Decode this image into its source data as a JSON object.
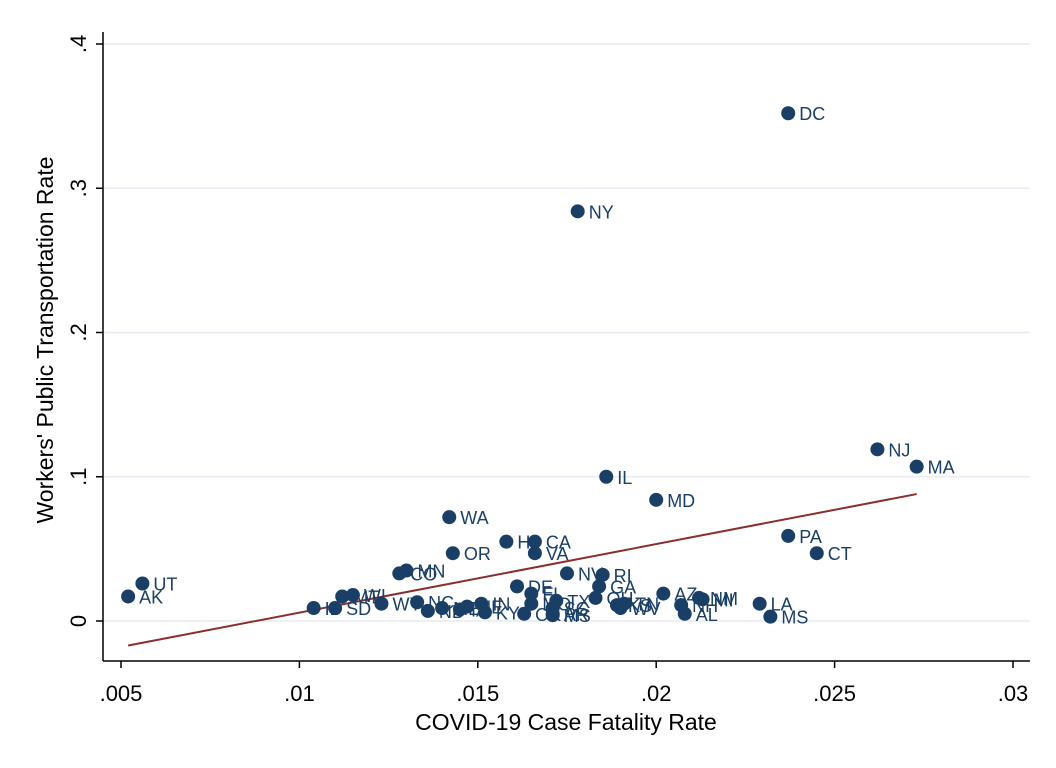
{
  "chart_data": {
    "type": "scatter",
    "xlabel": "COVID-19 Case Fatality Rate",
    "ylabel": "Workers' Public Transportation Rate",
    "xlim": [
      0.005,
      0.03
    ],
    "ylim": [
      0,
      0.4
    ],
    "x_ticks": [
      {
        "value": 0.005,
        "label": ".005"
      },
      {
        "value": 0.01,
        "label": ".01"
      },
      {
        "value": 0.015,
        "label": ".015"
      },
      {
        "value": 0.02,
        "label": ".02"
      },
      {
        "value": 0.025,
        "label": ".025"
      },
      {
        "value": 0.03,
        "label": ".03"
      }
    ],
    "y_ticks": [
      {
        "value": 0,
        "label": "0"
      },
      {
        "value": 0.1,
        "label": ".1"
      },
      {
        "value": 0.2,
        "label": ".2"
      },
      {
        "value": 0.3,
        "label": ".3"
      },
      {
        "value": 0.4,
        "label": ".4"
      }
    ],
    "grid": "horizontal",
    "marker_color": "#1a3f66",
    "fit_line_color": "#8b2e2e",
    "fit_line": {
      "x": [
        0.0052,
        0.0273
      ],
      "y": [
        -0.017,
        0.088
      ]
    },
    "points": [
      {
        "label": "DC",
        "x": 0.0237,
        "y": 0.352
      },
      {
        "label": "NY",
        "x": 0.0178,
        "y": 0.284
      },
      {
        "label": "NJ",
        "x": 0.0262,
        "y": 0.119
      },
      {
        "label": "MA",
        "x": 0.0273,
        "y": 0.107
      },
      {
        "label": "IL",
        "x": 0.0186,
        "y": 0.1
      },
      {
        "label": "MD",
        "x": 0.02,
        "y": 0.084
      },
      {
        "label": "WA",
        "x": 0.0142,
        "y": 0.072
      },
      {
        "label": "PA",
        "x": 0.0237,
        "y": 0.059
      },
      {
        "label": "HI",
        "x": 0.0158,
        "y": 0.055
      },
      {
        "label": "CA",
        "x": 0.0166,
        "y": 0.055
      },
      {
        "label": "OR",
        "x": 0.0143,
        "y": 0.047
      },
      {
        "label": "VA",
        "x": 0.0166,
        "y": 0.047
      },
      {
        "label": "CT",
        "x": 0.0245,
        "y": 0.047
      },
      {
        "label": "MN",
        "x": 0.013,
        "y": 0.035
      },
      {
        "label": "CO",
        "x": 0.0128,
        "y": 0.033
      },
      {
        "label": "NV",
        "x": 0.0175,
        "y": 0.033
      },
      {
        "label": "RI",
        "x": 0.0185,
        "y": 0.032
      },
      {
        "label": "UT",
        "x": 0.0056,
        "y": 0.026
      },
      {
        "label": "DE",
        "x": 0.0161,
        "y": 0.024
      },
      {
        "label": "GA",
        "x": 0.0184,
        "y": 0.024
      },
      {
        "label": "AK",
        "x": 0.0052,
        "y": 0.017
      },
      {
        "label": "MT",
        "x": 0.0112,
        "y": 0.017
      },
      {
        "label": "WI",
        "x": 0.0115,
        "y": 0.018
      },
      {
        "label": "FL",
        "x": 0.0165,
        "y": 0.019
      },
      {
        "label": "AZ",
        "x": 0.0202,
        "y": 0.019
      },
      {
        "label": "NM",
        "x": 0.0212,
        "y": 0.016
      },
      {
        "label": "MI",
        "x": 0.0213,
        "y": 0.015
      },
      {
        "label": "TX",
        "x": 0.0172,
        "y": 0.014
      },
      {
        "label": "OH",
        "x": 0.0183,
        "y": 0.016
      },
      {
        "label": "NC",
        "x": 0.0133,
        "y": 0.013
      },
      {
        "label": "WY",
        "x": 0.0123,
        "y": 0.012
      },
      {
        "label": "IN",
        "x": 0.0151,
        "y": 0.012
      },
      {
        "label": "MO",
        "x": 0.0165,
        "y": 0.012
      },
      {
        "label": "KS",
        "x": 0.0189,
        "y": 0.011
      },
      {
        "label": "TN",
        "x": 0.0191,
        "y": 0.012
      },
      {
        "label": "LA",
        "x": 0.0229,
        "y": 0.012
      },
      {
        "label": "NH",
        "x": 0.0207,
        "y": 0.011
      },
      {
        "label": "ID",
        "x": 0.0104,
        "y": 0.009
      },
      {
        "label": "SD",
        "x": 0.011,
        "y": 0.009
      },
      {
        "label": "ME",
        "x": 0.014,
        "y": 0.009
      },
      {
        "label": "NE",
        "x": 0.0147,
        "y": 0.01
      },
      {
        "label": "IA",
        "x": 0.0145,
        "y": 0.008
      },
      {
        "label": "SC",
        "x": 0.0171,
        "y": 0.009
      },
      {
        "label": "WV",
        "x": 0.019,
        "y": 0.009
      },
      {
        "label": "ND",
        "x": 0.0136,
        "y": 0.007
      },
      {
        "label": "KY",
        "x": 0.0152,
        "y": 0.006
      },
      {
        "label": "OK",
        "x": 0.0163,
        "y": 0.005
      },
      {
        "label": "MS",
        "x": 0.0171,
        "y": 0.004
      },
      {
        "label": "AR",
        "x": 0.0171,
        "y": 0.005
      },
      {
        "label": "AL",
        "x": 0.0208,
        "y": 0.005
      },
      {
        "label": "MS",
        "x": 0.0232,
        "y": 0.003
      }
    ]
  }
}
